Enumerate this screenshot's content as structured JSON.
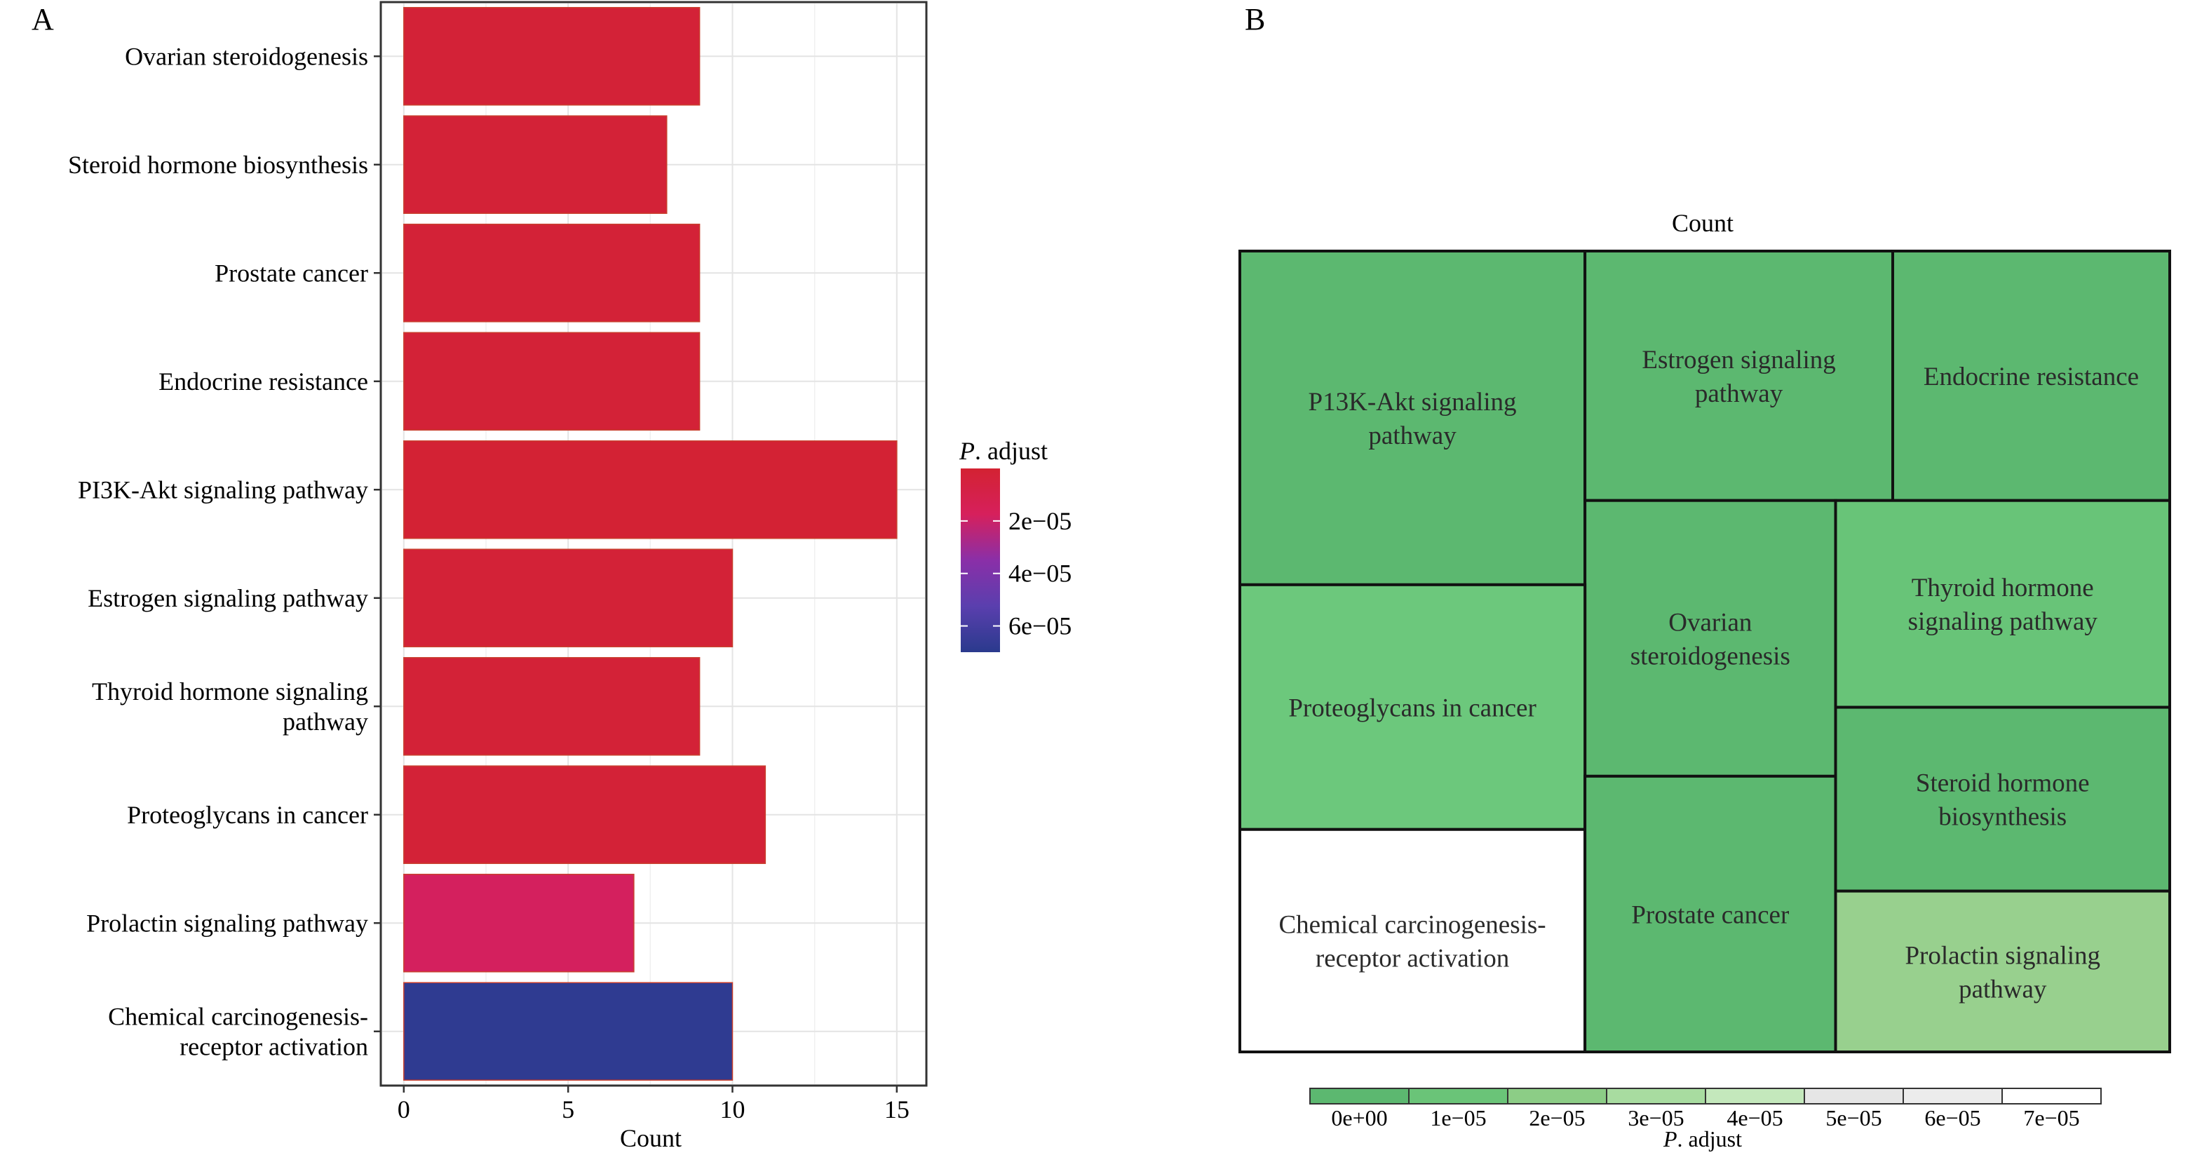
{
  "panels": {
    "a_label": "A",
    "b_label": "B"
  },
  "chart_data": [
    {
      "type": "bar",
      "orientation": "horizontal",
      "categories": [
        "Ovarian steroidogenesis",
        "Steroid hormone biosynthesis",
        "Prostate cancer",
        "Endocrine resistance",
        "PI3K-Akt signaling pathway",
        "Estrogen signaling pathway",
        "Thyroid hormone signaling pathway",
        "Proteoglycans in cancer",
        "Prolactin signaling pathway",
        "Chemical carcinogenesis-receptor activation"
      ],
      "values": [
        9,
        8,
        9,
        9,
        15,
        10,
        9,
        11,
        7,
        10
      ],
      "p_adjust": [
        2e-06,
        2e-06,
        2e-06,
        2e-06,
        1e-06,
        2e-06,
        2e-06,
        2e-06,
        1.8e-05,
        6.8e-05
      ],
      "xlabel": "Count",
      "xlim": [
        -0.7,
        15.9
      ],
      "xticks": [
        0,
        5,
        10,
        15
      ],
      "grid": true,
      "legend": {
        "title": "P. adjust",
        "position": "right",
        "ticks": [
          "2e−05",
          "4e−05",
          "6e−05"
        ],
        "range": [
          0,
          7e-05
        ],
        "tick_values": [
          2e-05,
          4e-05,
          6e-05
        ],
        "colors": [
          "#d32232",
          "#d6205c",
          "#8a2fa8",
          "#5a3fae",
          "#2a3a8d"
        ]
      }
    },
    {
      "type": "treemap",
      "title": "Count",
      "cells": [
        {
          "label": [
            "P13K-Akt signaling",
            "pathway"
          ],
          "value": 15,
          "color": "#5cb870"
        },
        {
          "label": [
            "Estrogen signaling",
            "pathway"
          ],
          "value": 10,
          "color": "#5cb870"
        },
        {
          "label": [
            "Endocrine resistance"
          ],
          "value": 9,
          "color": "#5cb870"
        },
        {
          "label": [
            "Ovarian",
            "steroidogenesis"
          ],
          "value": 9,
          "color": "#5cb870"
        },
        {
          "label": [
            "Thyroid hormone",
            "signaling pathway"
          ],
          "value": 9,
          "color": "#68c478"
        },
        {
          "label": [
            "Proteoglycans in cancer"
          ],
          "value": 11,
          "color": "#6cc87c"
        },
        {
          "label": [
            "Steroid hormone",
            "biosynthesis"
          ],
          "value": 8,
          "color": "#5cb870"
        },
        {
          "label": [
            "Chemical carcinogenesis-",
            "receptor activation"
          ],
          "value": 10,
          "color": "#ffffff"
        },
        {
          "label": [
            "Prostate cancer"
          ],
          "value": 9,
          "color": "#5cb870"
        },
        {
          "label": [
            "Prolactin signaling",
            "pathway"
          ],
          "value": 7,
          "color": "#98d08e"
        }
      ],
      "legend": {
        "title": "P. adjust",
        "position": "bottom",
        "labels": [
          "0e+00",
          "1e−05",
          "2e−05",
          "3e−05",
          "4e−05",
          "5e−05",
          "6e−05",
          "7e−05"
        ],
        "colors": [
          "#5cb870",
          "#6ac478",
          "#8ccd86",
          "#a8dca0",
          "#c4e8bc",
          "#e6e6e6",
          "#ececec",
          "#ffffff"
        ]
      }
    }
  ]
}
